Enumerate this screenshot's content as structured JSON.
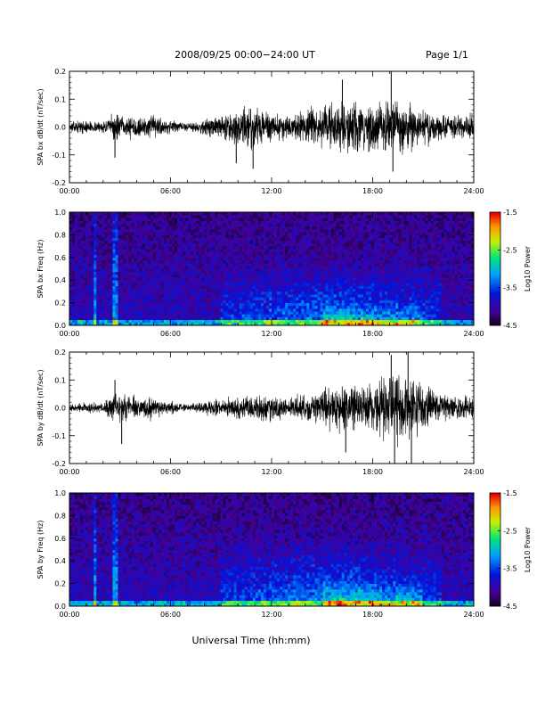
{
  "header": {
    "title": "2008/09/25  00:00−24:00 UT",
    "page": "Page 1/1"
  },
  "footer": {
    "xlabel": "Universal Time (hh:mm)"
  },
  "chart_data": [
    {
      "type": "line",
      "panel": "bx-dbdt",
      "ylabel": "SPA bx dB/dt (nT/sec)",
      "xlim": [
        "00:00",
        "24:00"
      ],
      "ylim": [
        -0.2,
        0.2
      ],
      "xticks": [
        "00:00",
        "06:00",
        "12:00",
        "18:00",
        "24:00"
      ],
      "yticks": [
        "-0.2",
        "-0.1",
        "0.0",
        "0.1",
        "0.2"
      ],
      "envelope": {
        "x_hours": [
          0,
          1,
          2,
          2.7,
          3.2,
          5,
          7,
          8,
          9,
          10,
          11,
          12,
          13,
          14,
          15,
          16,
          17,
          18,
          19,
          20,
          21,
          22,
          23,
          24
        ],
        "amplitude": [
          0.02,
          0.025,
          0.02,
          0.06,
          0.04,
          0.045,
          0.015,
          0.03,
          0.05,
          0.08,
          0.09,
          0.06,
          0.05,
          0.07,
          0.08,
          0.1,
          0.11,
          0.1,
          0.12,
          0.09,
          0.07,
          0.05,
          0.05,
          0.05
        ]
      },
      "spikes": [
        {
          "x_hours": 2.7,
          "y": -0.11
        },
        {
          "x_hours": 9.9,
          "y": -0.13
        },
        {
          "x_hours": 10.9,
          "y": -0.15
        },
        {
          "x_hours": 16.2,
          "y": 0.17
        },
        {
          "x_hours": 19.1,
          "y": 0.2
        },
        {
          "x_hours": 19.2,
          "y": -0.16
        }
      ]
    },
    {
      "type": "heatmap",
      "panel": "bx-spectrogram",
      "ylabel": "SPA bx Freq (Hz)",
      "xlim": [
        "00:00",
        "24:00"
      ],
      "ylim": [
        0.0,
        1.0
      ],
      "xticks": [
        "00:00",
        "06:00",
        "12:00",
        "18:00",
        "24:00"
      ],
      "yticks": [
        "0.0",
        "0.2",
        "0.4",
        "0.6",
        "0.8",
        "1.0"
      ],
      "colorbar": {
        "label": "Log10 Power",
        "range": [
          -4.5,
          -1.5
        ],
        "ticks": [
          "-1.5",
          "-2.5",
          "-3.5",
          "-4.5"
        ]
      },
      "features": {
        "vertical_bursts_hours": [
          1.5,
          2.7
        ],
        "activity_band": {
          "from_hours": 9,
          "to_hours": 22,
          "max_freq_hz": 0.55
        },
        "low_freq_enhancement": {
          "from_hours": 15,
          "to_hours": 21,
          "max_freq_hz": 0.2
        }
      }
    },
    {
      "type": "line",
      "panel": "by-dbdt",
      "ylabel": "SPA by dB/dt (nT/sec)",
      "xlim": [
        "00:00",
        "24:00"
      ],
      "ylim": [
        -0.2,
        0.2
      ],
      "xticks": [
        "00:00",
        "06:00",
        "12:00",
        "18:00",
        "24:00"
      ],
      "yticks": [
        "-0.2",
        "-0.1",
        "0.0",
        "0.1",
        "0.2"
      ],
      "envelope": {
        "x_hours": [
          0,
          1,
          2,
          2.7,
          3.2,
          5,
          7,
          8,
          9,
          10,
          11,
          12,
          13,
          14,
          15,
          16,
          17,
          18,
          19,
          20,
          21,
          22,
          23,
          24
        ],
        "amplitude": [
          0.015,
          0.02,
          0.02,
          0.06,
          0.05,
          0.04,
          0.015,
          0.025,
          0.035,
          0.045,
          0.05,
          0.05,
          0.04,
          0.05,
          0.07,
          0.1,
          0.09,
          0.1,
          0.14,
          0.12,
          0.09,
          0.06,
          0.05,
          0.05
        ]
      },
      "spikes": [
        {
          "x_hours": 2.7,
          "y": 0.1
        },
        {
          "x_hours": 3.1,
          "y": -0.13
        },
        {
          "x_hours": 16.4,
          "y": -0.16
        },
        {
          "x_hours": 19.1,
          "y": 0.19
        },
        {
          "x_hours": 19.3,
          "y": -0.2
        },
        {
          "x_hours": 20.1,
          "y": 0.2
        },
        {
          "x_hours": 20.3,
          "y": -0.2
        }
      ]
    },
    {
      "type": "heatmap",
      "panel": "by-spectrogram",
      "ylabel": "SPA by Freq (Hz)",
      "xlim": [
        "00:00",
        "24:00"
      ],
      "ylim": [
        0.0,
        1.0
      ],
      "xticks": [
        "00:00",
        "06:00",
        "12:00",
        "18:00",
        "24:00"
      ],
      "yticks": [
        "0.0",
        "0.2",
        "0.4",
        "0.6",
        "0.8",
        "1.0"
      ],
      "colorbar": {
        "label": "Log10 Power",
        "range": [
          -4.5,
          -1.5
        ],
        "ticks": [
          "-1.5",
          "-2.5",
          "-3.5",
          "-4.5"
        ]
      },
      "features": {
        "vertical_bursts_hours": [
          1.5,
          2.7
        ],
        "activity_band": {
          "from_hours": 9,
          "to_hours": 22,
          "max_freq_hz": 0.6
        },
        "low_freq_enhancement": {
          "from_hours": 15,
          "to_hours": 21,
          "max_freq_hz": 0.25
        }
      }
    }
  ]
}
